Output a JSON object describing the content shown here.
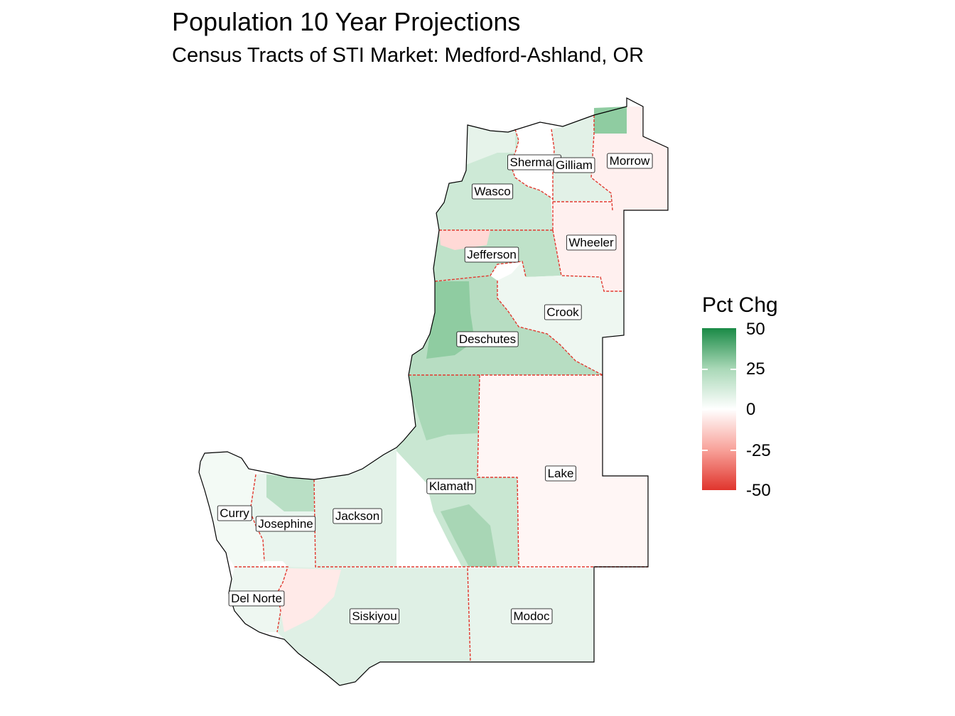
{
  "title": "Population 10 Year Projections",
  "subtitle": "Census Tracts of STI Market: Medford-Ashland, OR",
  "legend": {
    "title": "Pct Chg",
    "ticks": [
      "50",
      "25",
      "0",
      "-25",
      "-50"
    ],
    "scale": {
      "min": -50,
      "max": 50,
      "low_color": "#e0352d",
      "mid_color": "#ffffff",
      "high_color": "#1a8a46"
    }
  },
  "counties": [
    {
      "name": "Sherman"
    },
    {
      "name": "Gilliam"
    },
    {
      "name": "Morrow"
    },
    {
      "name": "Wasco"
    },
    {
      "name": "Wheeler"
    },
    {
      "name": "Jefferson"
    },
    {
      "name": "Crook"
    },
    {
      "name": "Deschutes"
    },
    {
      "name": "Lake"
    },
    {
      "name": "Klamath"
    },
    {
      "name": "Jackson"
    },
    {
      "name": "Curry"
    },
    {
      "name": "Josephine"
    },
    {
      "name": "Del Norte"
    },
    {
      "name": "Siskiyou"
    },
    {
      "name": "Modoc"
    }
  ]
}
